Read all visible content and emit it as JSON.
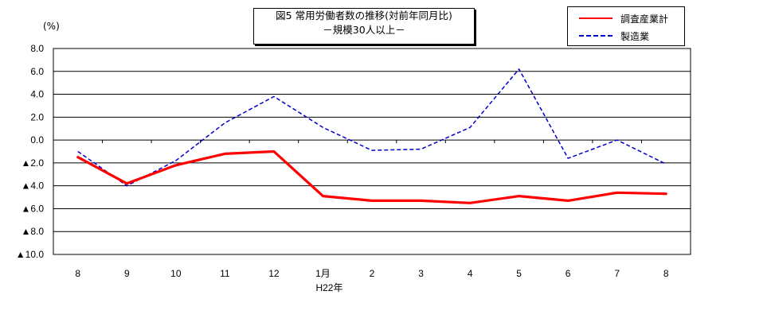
{
  "chart_data": {
    "type": "line",
    "title": "図5 常用労働者数の推移(対前年同月比)",
    "subtitle": "－規模30人以上－",
    "ylabel": "(%)",
    "ylim": [
      -10,
      8
    ],
    "yticks": [
      8,
      6,
      4,
      2,
      0,
      -2,
      -4,
      -6,
      -8,
      -10
    ],
    "ytick_labels": [
      "8.0",
      "6.0",
      "4.0",
      "2.0",
      "0.0",
      "▲2.0",
      "▲4.0",
      "▲6.0",
      "▲8.0",
      "▲10.0"
    ],
    "categories": [
      "8",
      "9",
      "10",
      "11",
      "12",
      "1月",
      "2",
      "3",
      "4",
      "5",
      "6",
      "7",
      "8"
    ],
    "x_sublabel": "H22年",
    "grid": true,
    "legend_position": "top-right",
    "series": [
      {
        "name": "調査産業計",
        "color": "#ff0000",
        "style": "solid",
        "values": [
          -1.5,
          -3.8,
          -2.2,
          -1.2,
          -1.0,
          -4.9,
          -5.3,
          -5.3,
          -5.5,
          -4.9,
          -5.3,
          -4.6,
          -4.7
        ]
      },
      {
        "name": "製造業",
        "color": "#0000cc",
        "style": "dashed",
        "values": [
          -1.0,
          -4.0,
          -1.8,
          1.5,
          3.8,
          1.1,
          -0.9,
          -0.8,
          1.1,
          6.2,
          -1.6,
          0.0,
          -2.1
        ]
      }
    ]
  }
}
